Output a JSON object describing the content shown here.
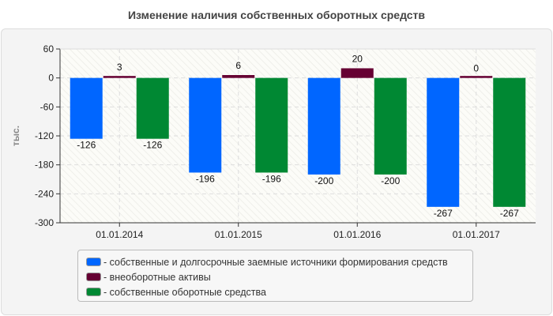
{
  "chart_data": {
    "type": "bar",
    "title": "Изменение наличия собственных оборотных средств",
    "ylabel": "тыс.",
    "xlabel": "",
    "ylim": [
      -300,
      60
    ],
    "yticks": [
      60,
      0,
      -60,
      -120,
      -180,
      -240,
      -300
    ],
    "grid": true,
    "legend_placement": "bottom",
    "categories": [
      "01.01.2014",
      "01.01.2015",
      "01.01.2016",
      "01.01.2017"
    ],
    "series": [
      {
        "name": "- собственные и долгосрочные заемные источники формирования средств",
        "color": "#0066ff",
        "values": [
          -126,
          -196,
          -200,
          -267
        ]
      },
      {
        "name": "- внеоборотные активы",
        "color": "#660033",
        "values": [
          3,
          6,
          20,
          0
        ]
      },
      {
        "name": "- собственные оборотные средства",
        "color": "#008833",
        "values": [
          -126,
          -196,
          -200,
          -267
        ]
      }
    ]
  }
}
